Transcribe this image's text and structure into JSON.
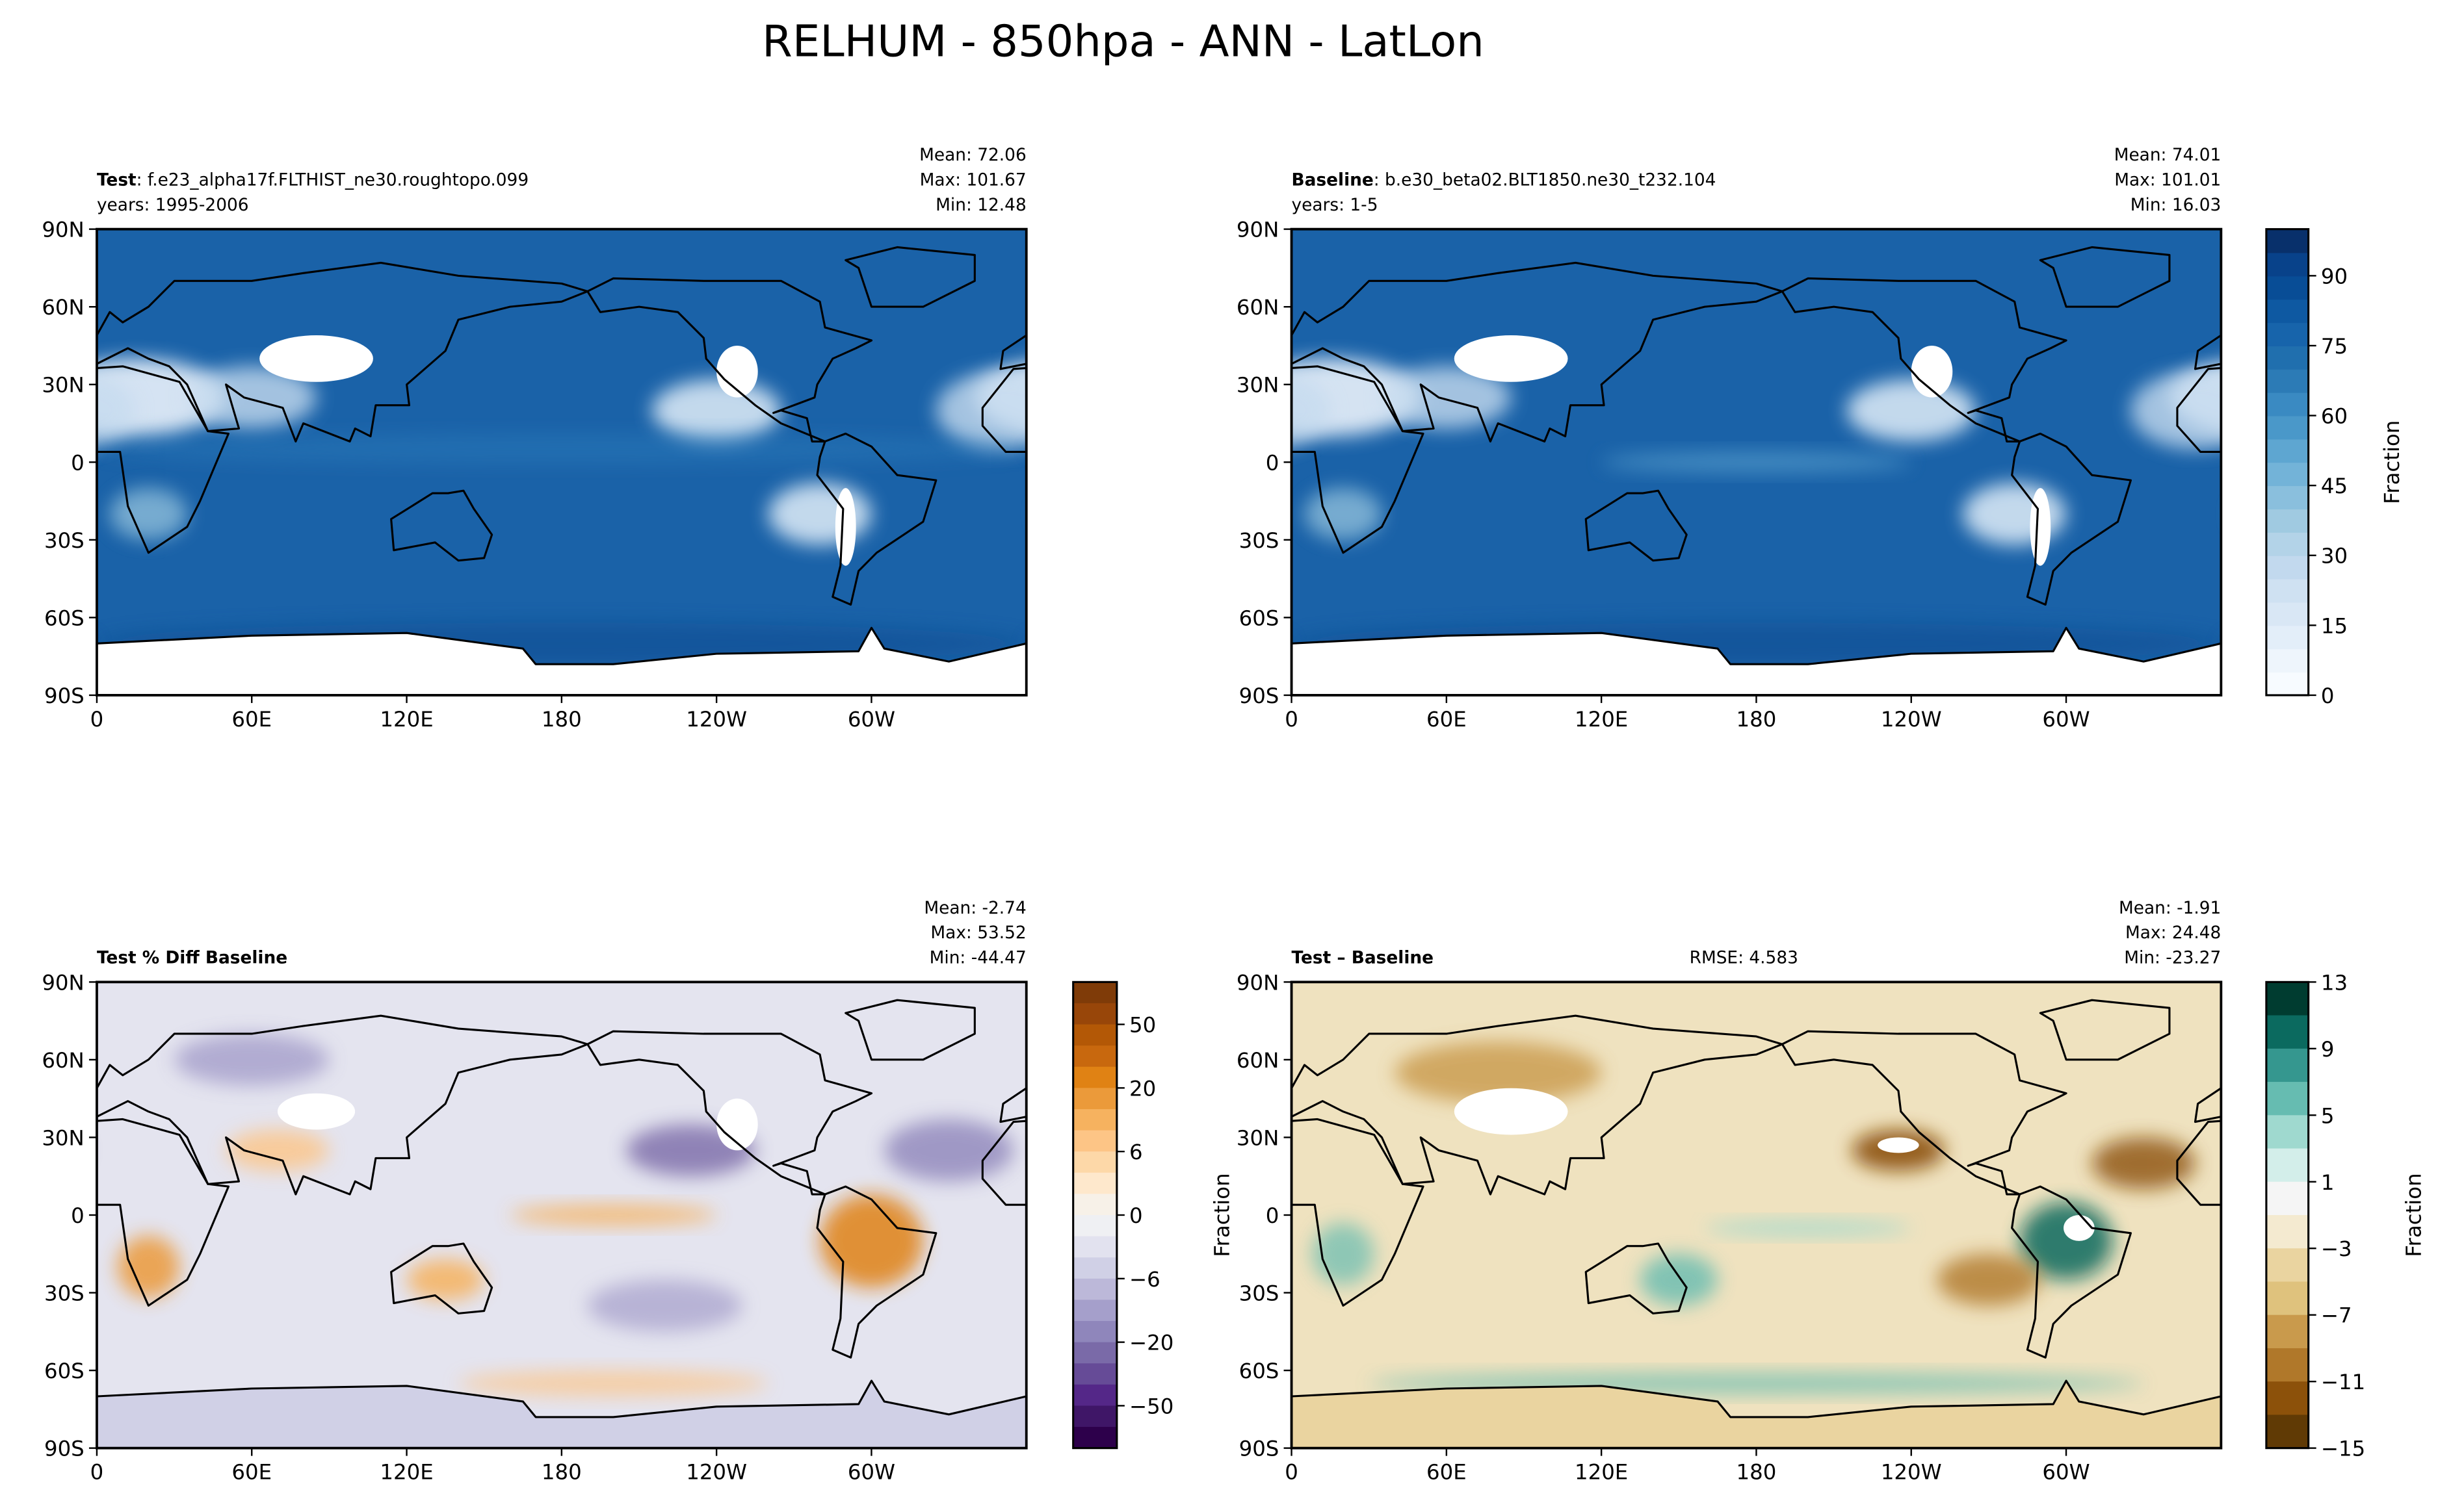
{
  "figure_title": "RELHUM - 850hpa - ANN - LatLon",
  "chart_data": [
    {
      "type": "heatmap",
      "panel": "test",
      "label_bold": "Test",
      "label_rest": ": f.e23_alpha17f.FLTHIST_ne30.roughtopo.099",
      "years": "years: 1995-2006",
      "stats": {
        "mean": "Mean: 72.06",
        "max": "Max: 101.67",
        "min": "Min: 12.48"
      },
      "colormap": "blues",
      "base_color": "#1a62a8"
    },
    {
      "type": "heatmap",
      "panel": "baseline",
      "label_bold": "Baseline",
      "label_rest": ": b.e30_beta02.BLT1850.ne30_t232.104",
      "years": "years: 1-5",
      "stats": {
        "mean": "Mean: 74.01",
        "max": "Max: 101.01",
        "min": "Min: 16.03"
      },
      "colormap": "blues",
      "base_color": "#1a62a8"
    },
    {
      "type": "heatmap",
      "panel": "pct_diff",
      "label_bold": "Test % Diff Baseline",
      "stats": {
        "mean": "Mean: -2.74",
        "max": "Max: 53.52",
        "min": "Min: -44.47"
      },
      "colormap": "PuOr_r",
      "base_color": "#e0e0ec"
    },
    {
      "type": "heatmap",
      "panel": "diff",
      "label_bold": "Test – Baseline",
      "rmse": "RMSE: 4.583",
      "stats": {
        "mean": "Mean: -1.91",
        "max": "Max: 24.48",
        "min": "Min: -23.27"
      },
      "ylabel": "Fraction",
      "colormap": "BrBG",
      "base_color": "#f1e6c8"
    }
  ],
  "axes": {
    "x_ticks": [
      "0",
      "60E",
      "120E",
      "180",
      "120W",
      "60W"
    ],
    "y_ticks": [
      "90N",
      "60N",
      "30N",
      "0",
      "30S",
      "60S",
      "90S"
    ]
  },
  "colorbars": {
    "main": {
      "label": "Fraction",
      "range": [
        0,
        100
      ],
      "ticks": [
        "0",
        "15",
        "30",
        "45",
        "60",
        "75",
        "90"
      ],
      "colors": [
        "#f7fbff",
        "#eef5fc",
        "#e3eef9",
        "#d9e7f5",
        "#cfe1f2",
        "#c2d9ee",
        "#b3d3e8",
        "#a0cae1",
        "#8abfdd",
        "#73b3d8",
        "#5ea6d1",
        "#4a98c9",
        "#3a8ac2",
        "#2c7bb6",
        "#206fae",
        "#1764ab",
        "#0e59a2",
        "#084d96",
        "#08428a",
        "#08306b"
      ]
    },
    "pct_diff": {
      "ticks": [
        "50",
        "20",
        "6",
        "0",
        "−6",
        "−20",
        "−50"
      ],
      "colors": [
        "#7f3b08",
        "#984609",
        "#b35806",
        "#c8680e",
        "#e08214",
        "#eb9a3a",
        "#f6b25f",
        "#fdc586",
        "#fdd8a8",
        "#fee8cc",
        "#f7f1e8",
        "#eff0f3",
        "#e2e2ef",
        "#d0d0e6",
        "#bcb8d9",
        "#a59fcb",
        "#8f86bb",
        "#7a6aa8",
        "#664b97",
        "#542788",
        "#3f1667",
        "#2d004b"
      ]
    },
    "diff": {
      "label": "Fraction",
      "ticks": [
        "13",
        "9",
        "5",
        "1",
        "−3",
        "−7",
        "−11",
        "−15"
      ],
      "colors": [
        "#003c30",
        "#0b6a5f",
        "#35978f",
        "#66bcb1",
        "#9fd9cf",
        "#d3eeea",
        "#f5f5f5",
        "#f4ead0",
        "#ead4a0",
        "#dfc27d",
        "#c99a4c",
        "#b0782a",
        "#8c510a",
        "#603a05"
      ]
    }
  }
}
